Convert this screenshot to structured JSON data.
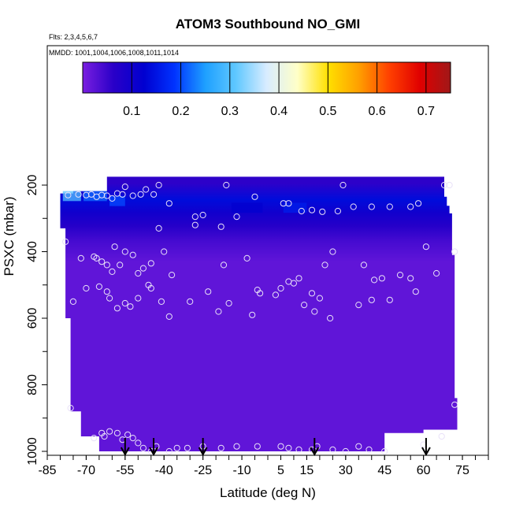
{
  "chart_data": {
    "type": "heatmap",
    "title": "ATOM3 Southbound NO_GMI",
    "subtitle_flights": "Flts: 2,3,4,5,6,7",
    "subtitle_dates": "MMDD: 1001,1004,1006,1008,1011,1014",
    "xlabel": "Latitude (deg N)",
    "ylabel": "PSXC (mbar)",
    "xlim": [
      -85,
      85
    ],
    "ylim": [
      1000,
      0
    ],
    "x_ticks": [
      -85,
      -70,
      -55,
      -40,
      -25,
      -10,
      5,
      15,
      30,
      45,
      60,
      75
    ],
    "y_ticks": [
      200,
      400,
      600,
      800,
      1000
    ],
    "colorbar": {
      "min": 0.0,
      "max": 0.75,
      "ticks": [
        0.1,
        0.2,
        0.3,
        0.4,
        0.5,
        0.6,
        0.7
      ],
      "colors": [
        "#7a1fe0",
        "#2a00c8",
        "#0000d0",
        "#0033ff",
        "#1ea0ff",
        "#60c8ff",
        "#d8ecff",
        "#ffffc8",
        "#ffe000",
        "#ffa000",
        "#ff4000",
        "#e00000",
        "#a01818"
      ]
    },
    "field_levels": [
      {
        "p": 180,
        "v": 0.06
      },
      {
        "p": 230,
        "v": 0.14
      },
      {
        "p": 270,
        "v": 0.1
      },
      {
        "p": 310,
        "v": 0.07
      },
      {
        "p": 360,
        "v": 0.04
      },
      {
        "p": 420,
        "v": 0.02
      },
      {
        "p": 600,
        "v": 0.02
      },
      {
        "p": 1000,
        "v": 0.02
      }
    ],
    "sample_points": [
      [
        -77,
        230
      ],
      [
        -73,
        228
      ],
      [
        -70,
        230
      ],
      [
        -68,
        228
      ],
      [
        -66,
        235
      ],
      [
        -64,
        230
      ],
      [
        -62,
        232
      ],
      [
        -60,
        240
      ],
      [
        -58,
        225
      ],
      [
        -56,
        228
      ],
      [
        -55,
        205
      ],
      [
        -52,
        232
      ],
      [
        -49,
        228
      ],
      [
        -47,
        213
      ],
      [
        -44,
        228
      ],
      [
        -42,
        200
      ],
      [
        -38,
        255
      ],
      [
        -28,
        295
      ],
      [
        -25,
        290
      ],
      [
        -16,
        200
      ],
      [
        -12,
        295
      ],
      [
        -5,
        235
      ],
      [
        6,
        255
      ],
      [
        8,
        255
      ],
      [
        13,
        278
      ],
      [
        17,
        275
      ],
      [
        21,
        280
      ],
      [
        27,
        278
      ],
      [
        29,
        200
      ],
      [
        33,
        265
      ],
      [
        40,
        265
      ],
      [
        47,
        265
      ],
      [
        55,
        265
      ],
      [
        58,
        255
      ],
      [
        68,
        200
      ],
      [
        70,
        200
      ],
      [
        -78,
        370
      ],
      [
        -72,
        420
      ],
      [
        -67,
        415
      ],
      [
        -66,
        420
      ],
      [
        -64,
        430
      ],
      [
        -62,
        440
      ],
      [
        -60,
        460
      ],
      [
        -59,
        385
      ],
      [
        -57,
        440
      ],
      [
        -55,
        400
      ],
      [
        -52,
        410
      ],
      [
        -50,
        465
      ],
      [
        -48,
        450
      ],
      [
        -46,
        500
      ],
      [
        -45,
        435
      ],
      [
        -42,
        330
      ],
      [
        -40,
        400
      ],
      [
        -37,
        470
      ],
      [
        -28,
        320
      ],
      [
        -18,
        325
      ],
      [
        -17,
        440
      ],
      [
        -8,
        420
      ],
      [
        -4,
        515
      ],
      [
        -3,
        525
      ],
      [
        5,
        510
      ],
      [
        8,
        490
      ],
      [
        10,
        495
      ],
      [
        12,
        480
      ],
      [
        17,
        525
      ],
      [
        20,
        540
      ],
      [
        22,
        440
      ],
      [
        25,
        400
      ],
      [
        37,
        440
      ],
      [
        41,
        485
      ],
      [
        44,
        480
      ],
      [
        47,
        545
      ],
      [
        51,
        470
      ],
      [
        55,
        480
      ],
      [
        57,
        520
      ],
      [
        61,
        385
      ],
      [
        65,
        465
      ],
      [
        72,
        400
      ],
      [
        -75,
        550
      ],
      [
        -70,
        510
      ],
      [
        -65,
        505
      ],
      [
        -62,
        520
      ],
      [
        -61,
        540
      ],
      [
        -58,
        570
      ],
      [
        -55,
        555
      ],
      [
        -53,
        565
      ],
      [
        -50,
        540
      ],
      [
        -45,
        510
      ],
      [
        -41,
        550
      ],
      [
        -38,
        595
      ],
      [
        -30,
        550
      ],
      [
        -23,
        520
      ],
      [
        -19,
        580
      ],
      [
        -15,
        555
      ],
      [
        -6,
        590
      ],
      [
        3,
        530
      ],
      [
        14,
        560
      ],
      [
        18,
        580
      ],
      [
        24,
        600
      ],
      [
        35,
        560
      ],
      [
        40,
        545
      ],
      [
        -76,
        870
      ],
      [
        -67,
        960
      ],
      [
        -64,
        945
      ],
      [
        -63,
        955
      ],
      [
        -61,
        940
      ],
      [
        -58,
        945
      ],
      [
        -56,
        965
      ],
      [
        -54,
        950
      ],
      [
        -52,
        960
      ],
      [
        -50,
        975
      ],
      [
        -48,
        990
      ],
      [
        -45,
        1000
      ],
      [
        -43,
        985
      ],
      [
        -38,
        1000
      ],
      [
        -35,
        990
      ],
      [
        -31,
        990
      ],
      [
        -25,
        985
      ],
      [
        -18,
        990
      ],
      [
        -12,
        985
      ],
      [
        -4,
        985
      ],
      [
        5,
        985
      ],
      [
        8,
        990
      ],
      [
        12,
        995
      ],
      [
        17,
        995
      ],
      [
        19,
        985
      ],
      [
        25,
        995
      ],
      [
        30,
        1000
      ],
      [
        35,
        985
      ],
      [
        39,
        995
      ],
      [
        45,
        1000
      ],
      [
        60,
        980
      ],
      [
        67,
        955
      ],
      [
        72,
        860
      ]
    ],
    "arrows_lat": [
      -55,
      -44,
      -25,
      18,
      61
    ]
  }
}
